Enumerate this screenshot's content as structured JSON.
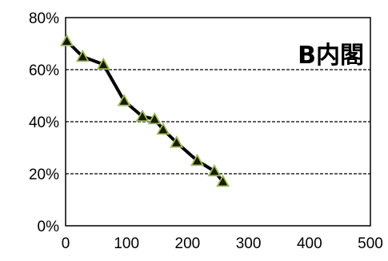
{
  "chart_data": {
    "type": "line",
    "title": "B内閣",
    "xlabel": "",
    "ylabel": "",
    "xlim": [
      0,
      500
    ],
    "ylim": [
      0,
      80
    ],
    "x_ticks": [
      "0",
      "100",
      "200",
      "300",
      "400",
      "500"
    ],
    "y_ticks": [
      "0%",
      "20%",
      "40%",
      "60%",
      "80%"
    ],
    "grid": "horizontal-dashed",
    "legend": "none",
    "line_color": "#000000",
    "marker": "triangle",
    "marker_fill": "#1a1a00",
    "marker_edge": "#9bbb59",
    "series": [
      {
        "x": [
          2,
          28,
          62,
          96,
          126,
          146,
          160,
          182,
          216,
          244,
          258
        ],
        "y": [
          71,
          65,
          62,
          48,
          42,
          41,
          37,
          32,
          25,
          21,
          17
        ]
      }
    ]
  }
}
